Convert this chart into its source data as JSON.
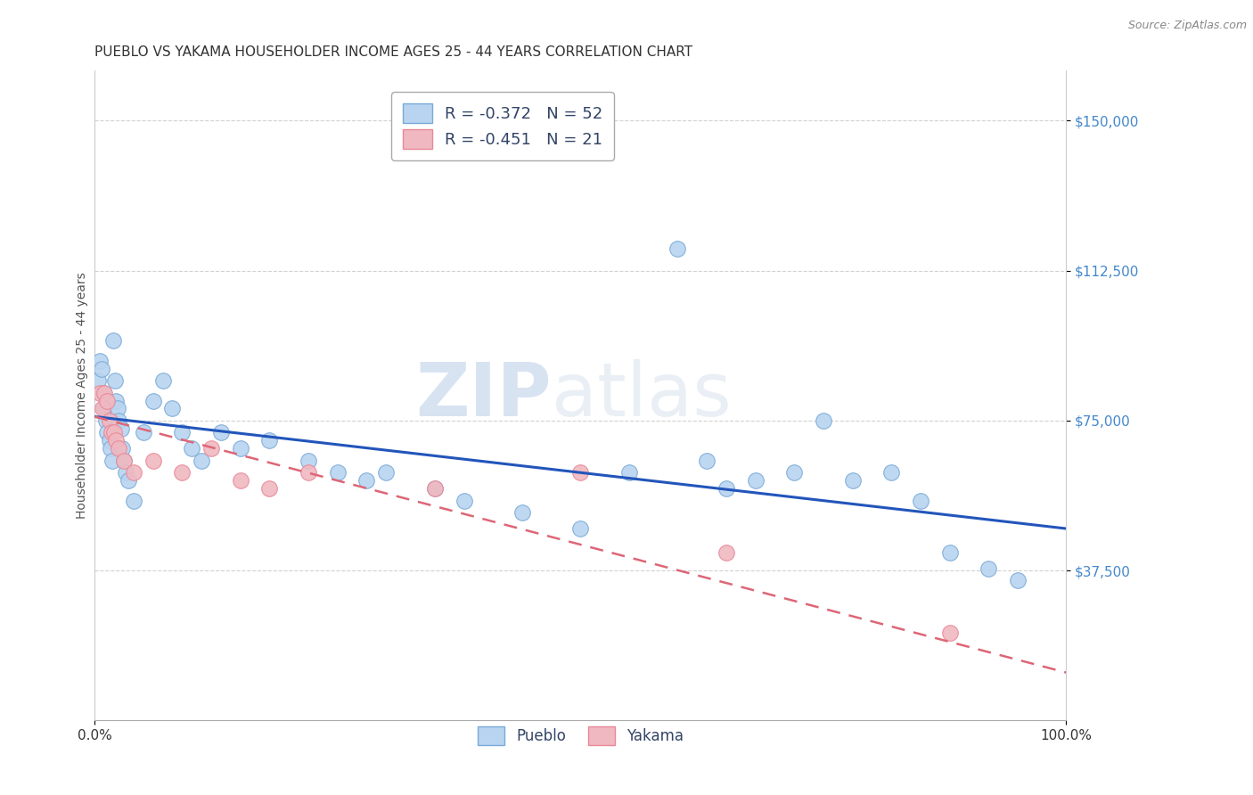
{
  "title": "PUEBLO VS YAKAMA HOUSEHOLDER INCOME AGES 25 - 44 YEARS CORRELATION CHART",
  "source": "Source: ZipAtlas.com",
  "ylabel": "Householder Income Ages 25 - 44 years",
  "xlim": [
    0,
    1.0
  ],
  "ylim": [
    0,
    162500
  ],
  "yticks": [
    37500,
    75000,
    112500,
    150000
  ],
  "ytick_labels": [
    "$37,500",
    "$75,000",
    "$112,500",
    "$150,000"
  ],
  "xticks": [
    0,
    1.0
  ],
  "xtick_labels": [
    "0.0%",
    "100.0%"
  ],
  "background_color": "#ffffff",
  "grid_color": "#cccccc",
  "watermark_zip": "ZIP",
  "watermark_atlas": "atlas",
  "pueblo_color": "#b8d4f0",
  "yakama_color": "#f0b8c0",
  "pueblo_edge_color": "#7aaad8",
  "yakama_edge_color": "#e88898",
  "trend_blue": "#2255bb",
  "trend_pink": "#dd6677",
  "pueblo_R": -0.372,
  "pueblo_N": 52,
  "yakama_R": -0.451,
  "yakama_N": 21,
  "pueblo_scatter_x": [
    0.003,
    0.005,
    0.007,
    0.009,
    0.01,
    0.012,
    0.013,
    0.015,
    0.016,
    0.018,
    0.019,
    0.021,
    0.022,
    0.024,
    0.025,
    0.027,
    0.028,
    0.03,
    0.032,
    0.035,
    0.04,
    0.05,
    0.06,
    0.07,
    0.08,
    0.09,
    0.1,
    0.11,
    0.13,
    0.15,
    0.18,
    0.22,
    0.25,
    0.28,
    0.3,
    0.35,
    0.38,
    0.44,
    0.5,
    0.55,
    0.6,
    0.63,
    0.65,
    0.68,
    0.72,
    0.75,
    0.78,
    0.82,
    0.85,
    0.88,
    0.92,
    0.95
  ],
  "pueblo_scatter_y": [
    85000,
    90000,
    88000,
    82000,
    78000,
    75000,
    72000,
    70000,
    68000,
    65000,
    95000,
    85000,
    80000,
    78000,
    75000,
    73000,
    68000,
    65000,
    62000,
    60000,
    55000,
    72000,
    80000,
    85000,
    78000,
    72000,
    68000,
    65000,
    72000,
    68000,
    70000,
    65000,
    62000,
    60000,
    62000,
    58000,
    55000,
    52000,
    48000,
    62000,
    118000,
    65000,
    58000,
    60000,
    62000,
    75000,
    60000,
    62000,
    55000,
    42000,
    38000,
    35000
  ],
  "yakama_scatter_x": [
    0.005,
    0.008,
    0.01,
    0.013,
    0.015,
    0.017,
    0.02,
    0.022,
    0.025,
    0.03,
    0.04,
    0.06,
    0.09,
    0.12,
    0.15,
    0.18,
    0.22,
    0.35,
    0.5,
    0.65,
    0.88
  ],
  "yakama_scatter_y": [
    82000,
    78000,
    82000,
    80000,
    75000,
    72000,
    72000,
    70000,
    68000,
    65000,
    62000,
    65000,
    62000,
    68000,
    60000,
    58000,
    62000,
    58000,
    62000,
    42000,
    22000
  ],
  "pueblo_line_x": [
    0.0,
    1.0
  ],
  "pueblo_line_y": [
    76000,
    48000
  ],
  "yakama_line_x": [
    0.0,
    1.0
  ],
  "yakama_line_y": [
    76000,
    12000
  ],
  "marker_size": 160,
  "title_fontsize": 11,
  "axis_label_fontsize": 10,
  "tick_fontsize": 11,
  "legend_fontsize": 13
}
